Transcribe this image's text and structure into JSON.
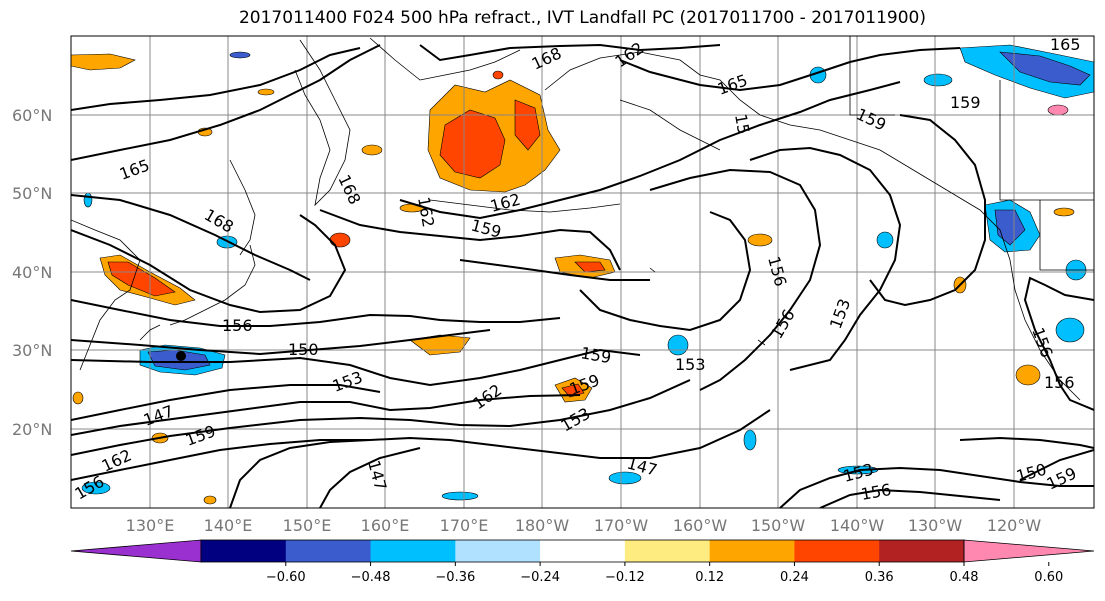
{
  "title": "2017011400 F024 500 hPa refract., IVT Landfall PC (2017011700 - 2017011900)",
  "lat_labels": [
    "60°N",
    "50°N",
    "40°N",
    "30°N",
    "20°N"
  ],
  "lon_labels": [
    "130°E",
    "140°E",
    "150°E",
    "160°E",
    "170°E",
    "180°W",
    "170°W",
    "160°W",
    "150°W",
    "140°W",
    "130°W",
    "120°W"
  ],
  "colorbar": {
    "colors": [
      "#9b30d0",
      "#000080",
      "#3a5ccc",
      "#00bfff",
      "#b0e2ff",
      "#ffffff",
      "#ffec80",
      "#ffa500",
      "#ff4500",
      "#b22222",
      "#ff88b0"
    ],
    "tick_labels": [
      "−0.60",
      "−0.48",
      "−0.36",
      "−0.24",
      "−0.12",
      "0.12",
      "0.24",
      "0.36",
      "0.48",
      "0.60"
    ]
  },
  "contour_labels": [
    "165",
    "168",
    "165",
    "159",
    "168",
    "162",
    "159",
    "162",
    "156",
    "150",
    "153",
    "147",
    "159",
    "162",
    "147",
    "162",
    "159",
    "153",
    "159",
    "153",
    "156",
    "156",
    "153",
    "147",
    "153",
    "156",
    "150",
    "159",
    "156",
    "156",
    "159",
    "165",
    "168",
    "15"
  ]
}
